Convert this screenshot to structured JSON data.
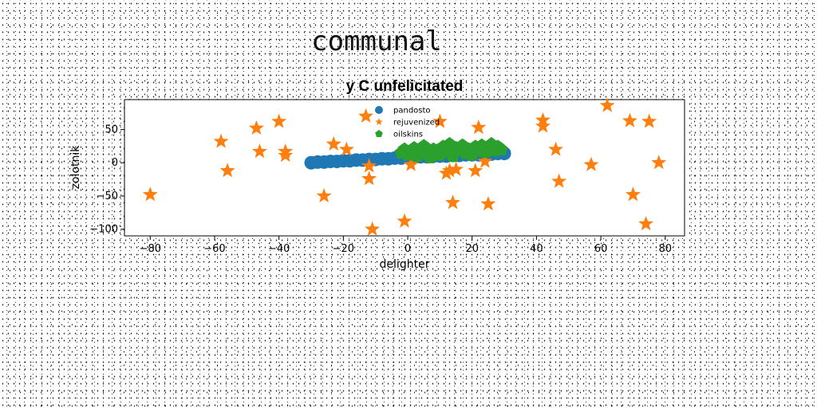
{
  "figure": {
    "suptitle": "communal"
  },
  "chart_data": {
    "type": "scatter",
    "title": "y C unfelicitated",
    "xlabel": "delighter",
    "ylabel": "zolotnik",
    "xlim": [
      -88,
      86
    ],
    "ylim": [
      -110,
      95
    ],
    "x_ticks": [
      -80,
      -60,
      -40,
      -20,
      0,
      20,
      40,
      60,
      80
    ],
    "y_ticks": [
      -100,
      -50,
      0,
      50
    ],
    "grid": false,
    "legend_position": "top-center",
    "series": [
      {
        "name": "pandosto",
        "marker": "circle",
        "color": "#1f77b4",
        "points": [
          [
            -30,
            0
          ],
          [
            -28,
            1
          ],
          [
            -26,
            1
          ],
          [
            -24,
            2
          ],
          [
            -22,
            2
          ],
          [
            -20,
            3
          ],
          [
            -18,
            3
          ],
          [
            -16,
            4
          ],
          [
            -14,
            4
          ],
          [
            -12,
            5
          ],
          [
            -10,
            5
          ],
          [
            -8,
            6
          ],
          [
            -6,
            6
          ],
          [
            -4,
            7
          ],
          [
            -2,
            7
          ],
          [
            0,
            8
          ],
          [
            2,
            8
          ],
          [
            4,
            9
          ],
          [
            6,
            9
          ],
          [
            8,
            10
          ],
          [
            10,
            10
          ],
          [
            12,
            10
          ],
          [
            14,
            11
          ],
          [
            16,
            11
          ],
          [
            18,
            12
          ],
          [
            20,
            12
          ],
          [
            22,
            12
          ],
          [
            24,
            13
          ],
          [
            26,
            13
          ],
          [
            28,
            14
          ],
          [
            30,
            14
          ]
        ]
      },
      {
        "name": "rejuvenized",
        "marker": "star",
        "color": "#ff7f0e",
        "points": [
          [
            -80,
            -48
          ],
          [
            -58,
            32
          ],
          [
            -56,
            -12
          ],
          [
            -47,
            52
          ],
          [
            -46,
            17
          ],
          [
            -40,
            62
          ],
          [
            -38,
            17
          ],
          [
            -38,
            11
          ],
          [
            -26,
            -50
          ],
          [
            -23,
            28
          ],
          [
            -19,
            20
          ],
          [
            -13,
            70
          ],
          [
            -12,
            -5
          ],
          [
            -12,
            -24
          ],
          [
            -11,
            -100
          ],
          [
            -1,
            -88
          ],
          [
            1,
            -3
          ],
          [
            10,
            62
          ],
          [
            12,
            -16
          ],
          [
            13,
            -12
          ],
          [
            14,
            -60
          ],
          [
            15,
            -10
          ],
          [
            21,
            -12
          ],
          [
            22,
            53
          ],
          [
            24,
            2
          ],
          [
            25,
            -62
          ],
          [
            42,
            64
          ],
          [
            42,
            55
          ],
          [
            46,
            20
          ],
          [
            47,
            -28
          ],
          [
            57,
            -3
          ],
          [
            62,
            86
          ],
          [
            69,
            63
          ],
          [
            70,
            -48
          ],
          [
            74,
            -92
          ],
          [
            75,
            62
          ],
          [
            78,
            0
          ]
        ]
      },
      {
        "name": "oilskins",
        "marker": "pentagon",
        "color": "#2ca02c",
        "points": [
          [
            -2,
            15
          ],
          [
            -1,
            20
          ],
          [
            0,
            12
          ],
          [
            1,
            18
          ],
          [
            2,
            22
          ],
          [
            3,
            10
          ],
          [
            4,
            16
          ],
          [
            5,
            25
          ],
          [
            6,
            14
          ],
          [
            7,
            8
          ],
          [
            8,
            20
          ],
          [
            9,
            18
          ],
          [
            10,
            12
          ],
          [
            11,
            24
          ],
          [
            12,
            16
          ],
          [
            13,
            28
          ],
          [
            14,
            10
          ],
          [
            15,
            22
          ],
          [
            16,
            18
          ],
          [
            17,
            26
          ],
          [
            18,
            14
          ],
          [
            19,
            20
          ],
          [
            20,
            12
          ],
          [
            21,
            24
          ],
          [
            22,
            18
          ],
          [
            23,
            26
          ],
          [
            24,
            16
          ],
          [
            25,
            22
          ],
          [
            26,
            28
          ],
          [
            27,
            18
          ],
          [
            28,
            24
          ],
          [
            29,
            20
          ]
        ]
      }
    ]
  }
}
